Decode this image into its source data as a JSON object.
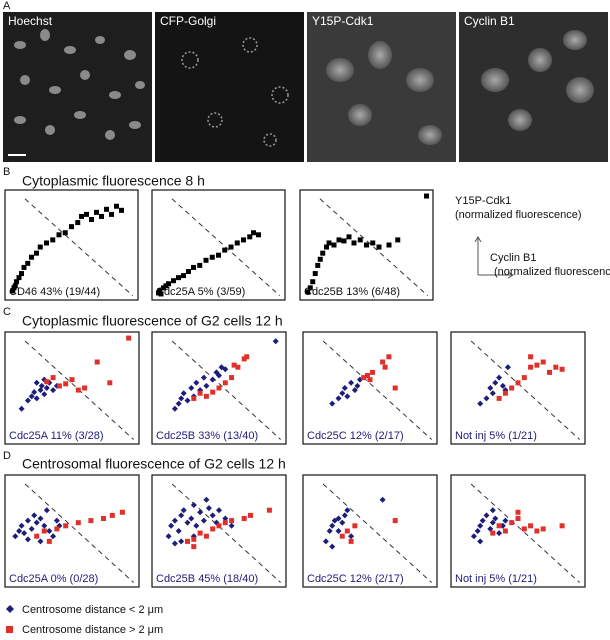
{
  "panel_a": {
    "label": "A",
    "images": [
      "Hoechst",
      "CFP-Golgi",
      "Y15P-Cdk1",
      "Cyclin B1"
    ]
  },
  "panel_b": {
    "label": "B",
    "title": "Cytoplasmic fluorescence 8 h",
    "plots": [
      {
        "caption": "CD46 43% (19/44)",
        "points": [
          [
            3,
            5
          ],
          [
            4,
            8
          ],
          [
            5,
            10
          ],
          [
            6,
            14
          ],
          [
            8,
            18
          ],
          [
            10,
            22
          ],
          [
            12,
            28
          ],
          [
            15,
            32
          ],
          [
            18,
            38
          ],
          [
            22,
            42
          ],
          [
            25,
            48
          ],
          [
            30,
            52
          ],
          [
            35,
            55
          ],
          [
            40,
            60
          ],
          [
            45,
            62
          ],
          [
            50,
            68
          ],
          [
            55,
            72
          ],
          [
            58,
            78
          ],
          [
            62,
            80
          ],
          [
            66,
            75
          ],
          [
            70,
            82
          ],
          [
            74,
            78
          ],
          [
            78,
            85
          ],
          [
            82,
            80
          ],
          [
            86,
            88
          ],
          [
            90,
            84
          ]
        ]
      },
      {
        "caption": "Cdc25A 5% (3/59)",
        "points": [
          [
            2,
            3
          ],
          [
            3,
            5
          ],
          [
            4,
            2
          ],
          [
            6,
            8
          ],
          [
            8,
            10
          ],
          [
            10,
            12
          ],
          [
            14,
            15
          ],
          [
            18,
            18
          ],
          [
            22,
            20
          ],
          [
            26,
            24
          ],
          [
            30,
            28
          ],
          [
            35,
            30
          ],
          [
            40,
            35
          ],
          [
            45,
            38
          ],
          [
            50,
            40
          ],
          [
            55,
            45
          ],
          [
            60,
            48
          ],
          [
            65,
            52
          ],
          [
            70,
            55
          ],
          [
            75,
            58
          ],
          [
            78,
            62
          ],
          [
            82,
            60
          ]
        ]
      },
      {
        "caption": "Cdc25B 13% (6/48)",
        "points": [
          [
            3,
            4
          ],
          [
            5,
            8
          ],
          [
            7,
            14
          ],
          [
            9,
            22
          ],
          [
            11,
            30
          ],
          [
            13,
            36
          ],
          [
            15,
            42
          ],
          [
            18,
            48
          ],
          [
            20,
            52
          ],
          [
            24,
            50
          ],
          [
            28,
            55
          ],
          [
            32,
            54
          ],
          [
            36,
            58
          ],
          [
            40,
            52
          ],
          [
            45,
            55
          ],
          [
            50,
            50
          ],
          [
            55,
            52
          ],
          [
            60,
            48
          ],
          [
            68,
            50
          ],
          [
            75,
            55
          ],
          [
            98,
            98
          ]
        ]
      }
    ]
  },
  "axis_legend": {
    "y": "Y15P-Cdk1",
    "y_unit": "(normalized fluorescence)",
    "x": "Cyclin B1",
    "x_unit": "(normalized fluorescence)"
  },
  "panel_c": {
    "label": "C",
    "title": "Cytoplasmic fluorescence of G2 cells 12 h",
    "plots": [
      {
        "caption": "Cdc25A 11% (3/28)",
        "blue": [
          [
            10,
            30
          ],
          [
            15,
            38
          ],
          [
            18,
            42
          ],
          [
            20,
            46
          ],
          [
            22,
            40
          ],
          [
            25,
            48
          ],
          [
            26,
            52
          ],
          [
            28,
            44
          ],
          [
            30,
            50
          ],
          [
            32,
            55
          ],
          [
            35,
            48
          ],
          [
            38,
            52
          ],
          [
            22,
            55
          ],
          [
            28,
            58
          ]
        ],
        "red": [
          [
            30,
            56
          ],
          [
            35,
            60
          ],
          [
            40,
            52
          ],
          [
            45,
            54
          ],
          [
            50,
            58
          ],
          [
            55,
            48
          ],
          [
            60,
            50
          ],
          [
            70,
            75
          ],
          [
            80,
            55
          ],
          [
            95,
            98
          ]
        ]
      },
      {
        "caption": "Cdc25B 33% (13/40)",
        "blue": [
          [
            15,
            30
          ],
          [
            18,
            35
          ],
          [
            20,
            40
          ],
          [
            22,
            45
          ],
          [
            25,
            38
          ],
          [
            28,
            50
          ],
          [
            30,
            42
          ],
          [
            32,
            55
          ],
          [
            35,
            48
          ],
          [
            38,
            60
          ],
          [
            40,
            52
          ],
          [
            45,
            58
          ],
          [
            48,
            65
          ],
          [
            50,
            62
          ],
          [
            52,
            70
          ],
          [
            55,
            68
          ],
          [
            95,
            95
          ]
        ],
        "red": [
          [
            30,
            40
          ],
          [
            35,
            45
          ],
          [
            40,
            42
          ],
          [
            45,
            46
          ],
          [
            50,
            50
          ],
          [
            55,
            55
          ],
          [
            60,
            60
          ],
          [
            62,
            72
          ],
          [
            65,
            70
          ],
          [
            70,
            78
          ],
          [
            72,
            80
          ]
        ]
      },
      {
        "caption": "Cdc25C 12% (2/17)",
        "blue": [
          [
            20,
            35
          ],
          [
            25,
            40
          ],
          [
            28,
            45
          ],
          [
            30,
            50
          ],
          [
            32,
            42
          ],
          [
            35,
            55
          ],
          [
            38,
            48
          ],
          [
            40,
            52
          ],
          [
            42,
            58
          ]
        ],
        "red": [
          [
            45,
            60
          ],
          [
            48,
            62
          ],
          [
            50,
            58
          ],
          [
            52,
            65
          ],
          [
            60,
            75
          ],
          [
            62,
            70
          ],
          [
            65,
            80
          ],
          [
            70,
            50
          ]
        ]
      },
      {
        "caption": "Not inj 5% (1/21)",
        "blue": [
          [
            20,
            35
          ],
          [
            25,
            40
          ],
          [
            28,
            50
          ],
          [
            30,
            45
          ],
          [
            32,
            55
          ],
          [
            35,
            60
          ],
          [
            38,
            52
          ],
          [
            40,
            48
          ],
          [
            42,
            70
          ]
        ],
        "red": [
          [
            35,
            40
          ],
          [
            40,
            45
          ],
          [
            45,
            50
          ],
          [
            50,
            55
          ],
          [
            55,
            60
          ],
          [
            60,
            70
          ],
          [
            65,
            72
          ],
          [
            70,
            75
          ],
          [
            75,
            65
          ],
          [
            80,
            70
          ],
          [
            85,
            68
          ],
          [
            60,
            80
          ]
        ]
      }
    ]
  },
  "panel_d": {
    "label": "D",
    "title": "Centrosomal fluorescence of G2 cells 12 h",
    "plots": [
      {
        "caption": "Cdc25A 0% (0/28)",
        "blue": [
          [
            5,
            45
          ],
          [
            8,
            50
          ],
          [
            10,
            55
          ],
          [
            12,
            48
          ],
          [
            15,
            60
          ],
          [
            18,
            52
          ],
          [
            20,
            65
          ],
          [
            22,
            58
          ],
          [
            25,
            62
          ],
          [
            28,
            55
          ],
          [
            30,
            70
          ],
          [
            32,
            50
          ],
          [
            35,
            45
          ],
          [
            38,
            60
          ],
          [
            40,
            55
          ],
          [
            25,
            40
          ],
          [
            15,
            42
          ]
        ],
        "red": [
          [
            22,
            45
          ],
          [
            28,
            50
          ],
          [
            32,
            40
          ],
          [
            38,
            52
          ],
          [
            45,
            55
          ],
          [
            55,
            58
          ],
          [
            65,
            60
          ],
          [
            75,
            62
          ],
          [
            82,
            65
          ],
          [
            90,
            68
          ]
        ]
      },
      {
        "caption": "Cdc25B 45% (18/40)",
        "blue": [
          [
            10,
            45
          ],
          [
            12,
            55
          ],
          [
            15,
            60
          ],
          [
            18,
            50
          ],
          [
            20,
            65
          ],
          [
            22,
            70
          ],
          [
            25,
            58
          ],
          [
            28,
            62
          ],
          [
            30,
            75
          ],
          [
            32,
            55
          ],
          [
            35,
            68
          ],
          [
            38,
            60
          ],
          [
            40,
            80
          ],
          [
            42,
            72
          ],
          [
            45,
            65
          ],
          [
            48,
            58
          ],
          [
            50,
            70
          ],
          [
            55,
            62
          ],
          [
            60,
            55
          ],
          [
            20,
            40
          ],
          [
            15,
            38
          ],
          [
            30,
            45
          ]
        ],
        "red": [
          [
            25,
            40
          ],
          [
            30,
            42
          ],
          [
            35,
            48
          ],
          [
            40,
            45
          ],
          [
            45,
            52
          ],
          [
            50,
            55
          ],
          [
            55,
            58
          ],
          [
            60,
            60
          ],
          [
            70,
            62
          ],
          [
            75,
            65
          ],
          [
            90,
            70
          ],
          [
            30,
            35
          ]
        ]
      },
      {
        "caption": "Cdc25C 12% (2/17)",
        "blue": [
          [
            15,
            40
          ],
          [
            18,
            50
          ],
          [
            20,
            55
          ],
          [
            22,
            60
          ],
          [
            25,
            62
          ],
          [
            28,
            58
          ],
          [
            30,
            65
          ],
          [
            32,
            70
          ],
          [
            35,
            45
          ],
          [
            20,
            35
          ],
          [
            60,
            80
          ],
          [
            25,
            50
          ]
        ],
        "red": [
          [
            28,
            45
          ],
          [
            32,
            50
          ],
          [
            35,
            40
          ],
          [
            38,
            55
          ],
          [
            70,
            60
          ]
        ]
      },
      {
        "caption": "Not inj 5% (1/21)",
        "blue": [
          [
            15,
            45
          ],
          [
            18,
            50
          ],
          [
            20,
            55
          ],
          [
            22,
            60
          ],
          [
            25,
            65
          ],
          [
            28,
            52
          ],
          [
            30,
            58
          ],
          [
            32,
            62
          ],
          [
            35,
            48
          ],
          [
            38,
            55
          ],
          [
            40,
            60
          ],
          [
            20,
            40
          ],
          [
            30,
            70
          ]
        ],
        "red": [
          [
            30,
            48
          ],
          [
            35,
            55
          ],
          [
            40,
            50
          ],
          [
            45,
            58
          ],
          [
            50,
            62
          ],
          [
            55,
            52
          ],
          [
            60,
            55
          ],
          [
            65,
            50
          ],
          [
            70,
            52
          ],
          [
            85,
            55
          ],
          [
            50,
            68
          ]
        ]
      }
    ]
  },
  "legend": {
    "blue": "Centrosome distance < 2 μm",
    "red": "Centrosome distance > 2 μm"
  }
}
